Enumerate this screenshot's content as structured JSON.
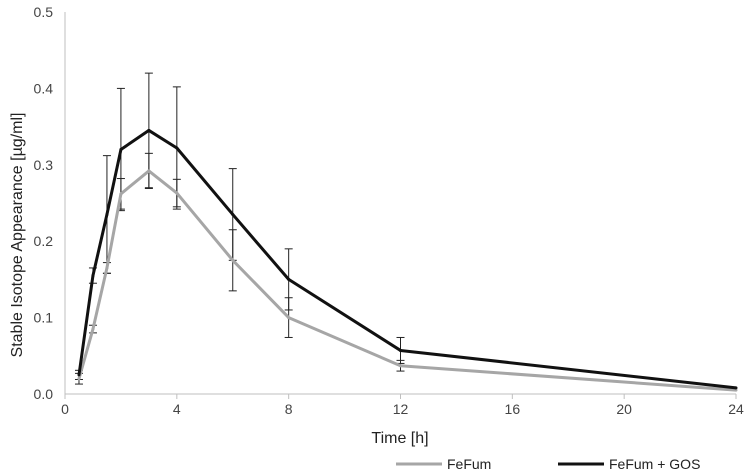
{
  "chart_data": {
    "type": "line",
    "title": "",
    "xlabel": "Time [h]",
    "ylabel": "Stable Isotope Appearance [µg/ml]",
    "xlim": [
      0,
      24
    ],
    "ylim": [
      0,
      0.5
    ],
    "x_ticks": [
      0,
      4,
      8,
      12,
      16,
      20,
      24
    ],
    "y_ticks": [
      0.0,
      0.1,
      0.2,
      0.3,
      0.4,
      0.5
    ],
    "x_tick_labels": [
      "0",
      "4",
      "8",
      "12",
      "16",
      "20",
      "24"
    ],
    "y_tick_labels": [
      "0.0",
      "0.1",
      "0.2",
      "0.3",
      "0.4",
      "0.5"
    ],
    "grid": false,
    "legend_position": "bottom",
    "series": [
      {
        "name": "FeFum",
        "color": "#a6a6a6",
        "x": [
          0.5,
          1,
          1.5,
          2,
          3,
          4,
          6,
          8,
          12,
          24
        ],
        "values": [
          0.02,
          0.085,
          0.165,
          0.262,
          0.292,
          0.263,
          0.175,
          0.1,
          0.037,
          0.005
        ],
        "error": [
          0.007,
          0.005,
          0.007,
          0.02,
          0.023,
          0.018,
          0.04,
          0.026,
          0.007,
          0.0
        ]
      },
      {
        "name": "FeFum + GOS",
        "color": "#111111",
        "x": [
          0.5,
          1,
          1.5,
          2,
          3,
          4,
          6,
          8,
          12,
          24
        ],
        "values": [
          0.025,
          0.155,
          0.235,
          0.32,
          0.345,
          0.322,
          0.235,
          0.15,
          0.057,
          0.008
        ],
        "error": [
          0.006,
          0.01,
          0.077,
          0.08,
          0.075,
          0.08,
          0.06,
          0.04,
          0.017,
          0.0
        ]
      }
    ]
  }
}
